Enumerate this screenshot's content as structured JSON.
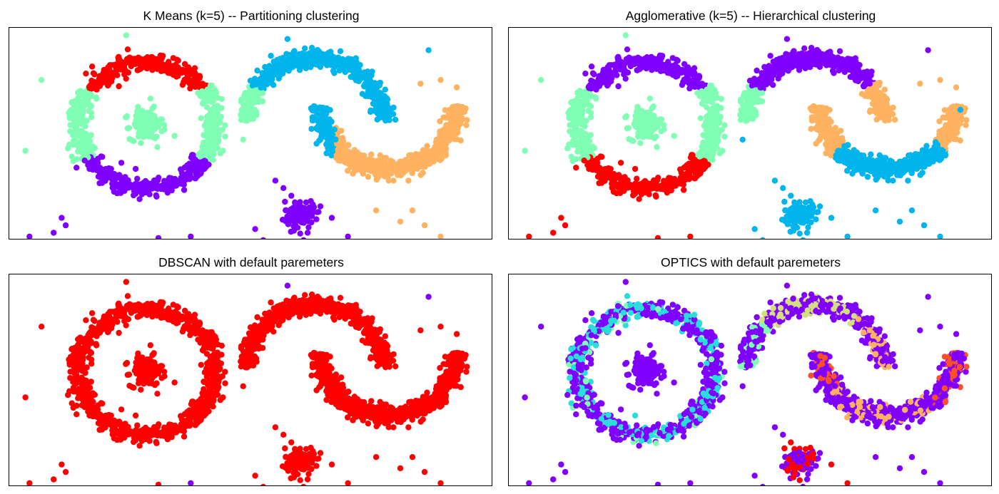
{
  "chart_data": [
    {
      "type": "scatter",
      "title": "K Means (k=5) -- Partitioning clustering",
      "method": "kmeans",
      "n_clusters": 5,
      "grid": false,
      "axes_visible": false,
      "xlim": [
        -1.7,
        4.3
      ],
      "ylim": [
        -1.55,
        1.3
      ],
      "point_color_by": "cluster",
      "cluster_colors": [
        "#8000ff",
        "#00b5eb",
        "#80ffb4",
        "#ffb360",
        "#ff0000"
      ],
      "shapes": [
        {
          "shape": "ring",
          "center": [
            0,
            0
          ],
          "radius": 0.85
        },
        {
          "shape": "blob",
          "center": [
            0,
            0
          ],
          "radius": 0.2
        },
        {
          "shape": "upper-moon",
          "center": [
            2.1,
            0.05
          ],
          "radius": 0.85
        },
        {
          "shape": "lower-moon",
          "center": [
            3.0,
            0.25
          ],
          "radius": 0.85
        },
        {
          "shape": "blob",
          "center": [
            1.9,
            -1.2
          ],
          "radius": 0.18
        }
      ]
    },
    {
      "type": "scatter",
      "title": "Agglomerative (k=5) -- Hierarchical clustering",
      "method": "agglomerative",
      "n_clusters": 5,
      "grid": false,
      "axes_visible": false,
      "xlim": [
        -1.7,
        4.3
      ],
      "ylim": [
        -1.55,
        1.3
      ],
      "point_color_by": "cluster",
      "cluster_colors": [
        "#8000ff",
        "#00b5eb",
        "#80ffb4",
        "#ffb360",
        "#ff0000"
      ]
    },
    {
      "type": "scatter",
      "title": "DBSCAN with default paremeters",
      "method": "dbscan",
      "grid": false,
      "axes_visible": false,
      "xlim": [
        -1.7,
        4.3
      ],
      "ylim": [
        -1.55,
        1.3
      ],
      "point_color_by": "cluster",
      "cluster_colors": [
        "#ff0000",
        "#8000ff"
      ]
    },
    {
      "type": "scatter",
      "title": "OPTICS with default paremeters",
      "method": "optics",
      "grid": false,
      "axes_visible": false,
      "xlim": [
        -1.7,
        4.3
      ],
      "ylim": [
        -1.55,
        1.3
      ],
      "point_color_by": "cluster",
      "cluster_colors": [
        "#8000ff",
        "#2adddd",
        "#80ffb4",
        "#d4dd80",
        "#ffb360",
        "#ff4f28",
        "#ff0000"
      ]
    }
  ]
}
